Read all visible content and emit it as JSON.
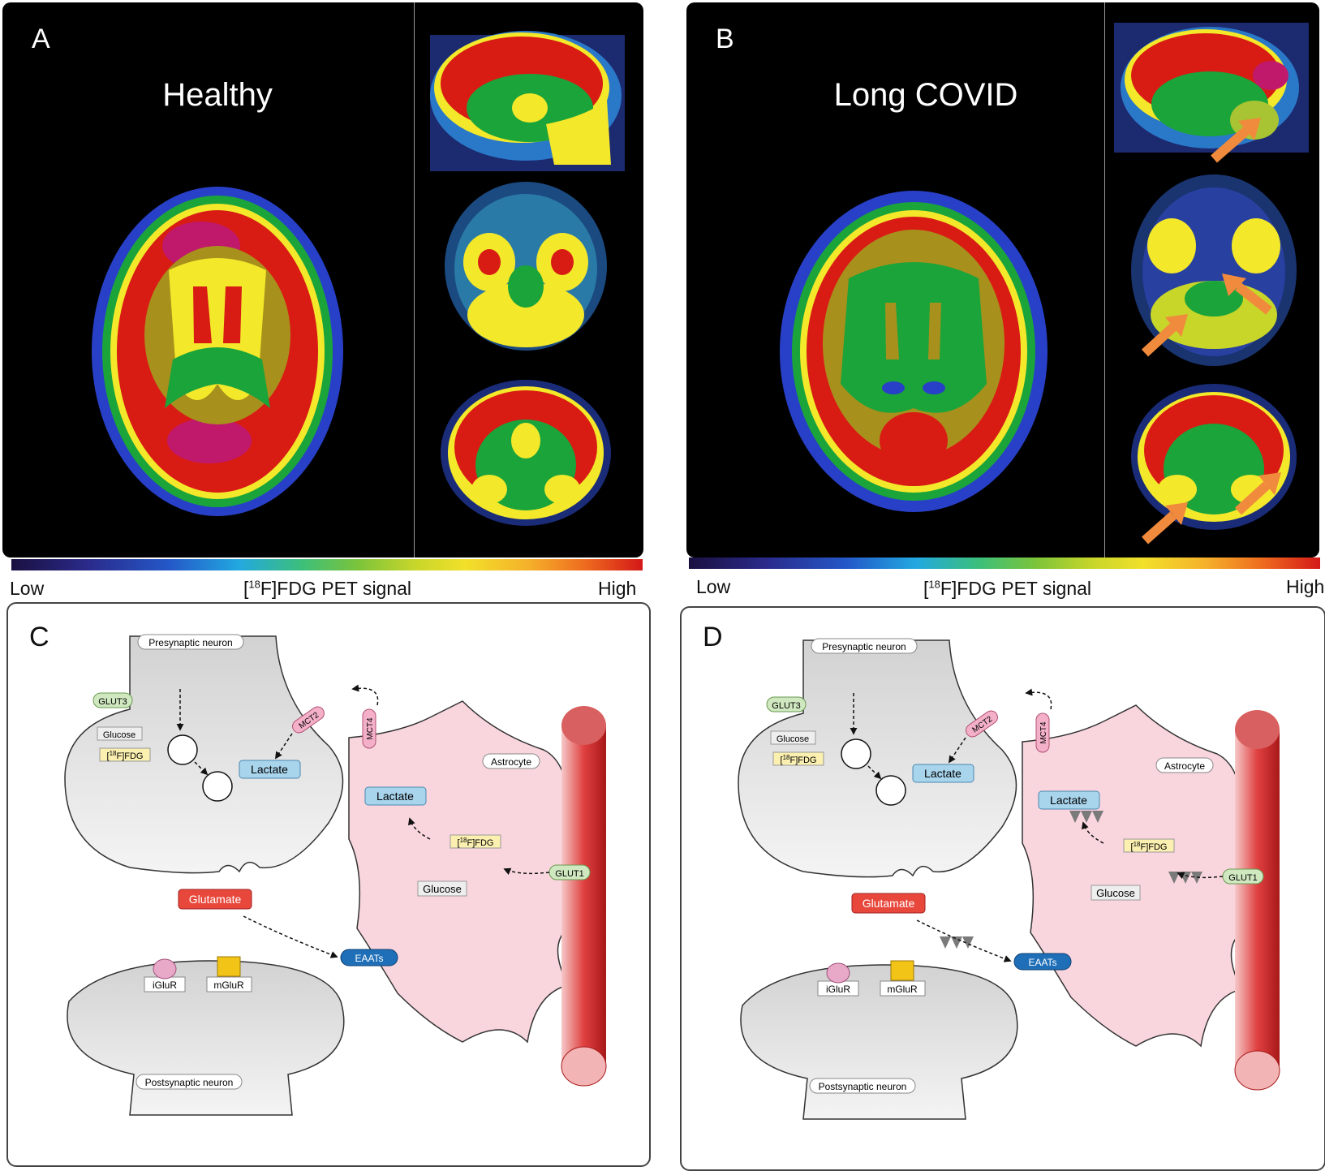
{
  "panels": {
    "a": {
      "letter": "A",
      "title": "Healthy"
    },
    "b": {
      "letter": "B",
      "title": "Long COVID"
    },
    "c": {
      "letter": "C"
    },
    "d": {
      "letter": "D"
    }
  },
  "colorbar": {
    "low": "Low",
    "high": "High",
    "label_prefix": "[",
    "label_sup": "18",
    "label_rest": "F]FDG PET signal"
  },
  "labels": {
    "presynaptic": "Presynaptic neuron",
    "postsynaptic": "Postsynaptic neuron",
    "astrocyte": "Astrocyte",
    "glut3": "GLUT3",
    "glut1": "GLUT1",
    "mct2": "MCT2",
    "mct4": "MCT4",
    "glucose": "Glucose",
    "fdg_prefix": "[",
    "fdg_sup": "18",
    "fdg_rest": "F]FDG",
    "lactate": "Lactate",
    "glutamate": "Glutamate",
    "eaats": "EAATs",
    "iglur": "iGluR",
    "mglur": "mGluR"
  },
  "colors": {
    "red_heat": "#d81c14",
    "yellow_heat": "#f4e82a",
    "green_heat": "#1aa43a",
    "blue_heat": "#2840c8",
    "neuron_fill": "#e6e6e6",
    "astrocyte_fill": "#f9d6de",
    "vessel": "#d42a2a",
    "glutamate_box": "#e8483c",
    "lactate_box": "#a8d4ec",
    "eaat": "#1f6fb8",
    "arrow_orange": "#f08a3c"
  }
}
